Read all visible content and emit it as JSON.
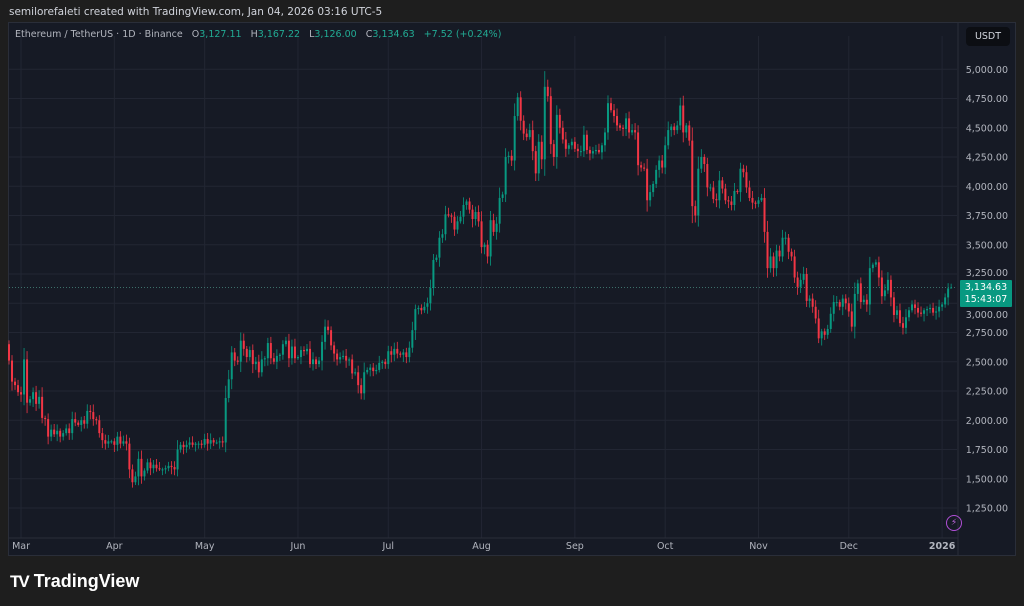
{
  "credit": "semilorefaleti created with TradingView.com, Jan 04, 2026 03:16 UTC-5",
  "legend": {
    "symbol": "Ethereum / TetherUS · 1D · Binance",
    "o_label": "O",
    "o": "3,127.11",
    "h_label": "H",
    "h": "3,167.22",
    "l_label": "L",
    "l": "3,126.00",
    "c_label": "C",
    "c": "3,134.63",
    "change": "+7.52 (+0.24%)"
  },
  "currency_button": "USDT",
  "price_label": {
    "price": "3,134.63",
    "countdown": "15:43:07"
  },
  "brand": {
    "name": "TradingView",
    "mark": "TV"
  },
  "icons": {
    "alert": "lightning-icon"
  },
  "colors": {
    "up": "#089981",
    "down": "#f23645",
    "background": "#161a25",
    "grid": "#222633"
  },
  "chart_data": {
    "type": "candlestick",
    "interval": "1D",
    "y_ticks": [
      "1,250.00",
      "1,500.00",
      "1,750.00",
      "2,000.00",
      "2,250.00",
      "2,500.00",
      "2,750.00",
      "3,000.00",
      "3,250.00",
      "3,500.00",
      "3,750.00",
      "4,000.00",
      "4,250.00",
      "4,500.00",
      "4,750.00",
      "5,000.00"
    ],
    "y_tick_values": [
      1250,
      1500,
      1750,
      2000,
      2250,
      2500,
      2750,
      3000,
      3250,
      3500,
      3750,
      4000,
      4250,
      4500,
      4750,
      5000
    ],
    "x_ticks": [
      "Mar",
      "Apr",
      "May",
      "Jun",
      "Jul",
      "Aug",
      "Sep",
      "Oct",
      "Nov",
      "Dec",
      "2026"
    ],
    "grid": true,
    "last_candle": {
      "open": 3127.11,
      "high": 3167.22,
      "low": 3126.0,
      "close": 3134.63
    },
    "first_open": 2650,
    "closes_by_month": {
      "2025-02": [
        2510,
        2330,
        2300,
        2240
      ],
      "2025-03": [
        2220,
        2520,
        2150,
        2180,
        2240,
        2140,
        2200,
        2020,
        2010,
        1860,
        1920,
        1880,
        1910,
        1860,
        1890,
        1930,
        1890,
        2010,
        1980,
        1960,
        2000,
        1970,
        2080,
        2070,
        2010,
        2000,
        1890,
        1830,
        1800,
        1820,
        1820
      ],
      "2025-04": [
        1790,
        1860,
        1800,
        1820,
        1800,
        1580,
        1470,
        1520,
        1670,
        1520,
        1570,
        1640,
        1590,
        1620,
        1590,
        1580,
        1580,
        1590,
        1610,
        1600,
        1580,
        1750,
        1790,
        1770,
        1790,
        1810,
        1790,
        1800,
        1800,
        1790
      ],
      "2025-05": [
        1840,
        1800,
        1830,
        1810,
        1810,
        1820,
        1810,
        2190,
        2350,
        2580,
        2510,
        2500,
        2680,
        2610,
        2540,
        2600,
        2480,
        2500,
        2410,
        2520,
        2530,
        2660,
        2530,
        2500,
        2550,
        2560,
        2650,
        2680,
        2530,
        2630,
        2530
      ],
      "2025-06": [
        2540,
        2600,
        2590,
        2610,
        2480,
        2520,
        2480,
        2510,
        2670,
        2800,
        2770,
        2640,
        2570,
        2520,
        2540,
        2550,
        2510,
        2520,
        2400,
        2410,
        2300,
        2230,
        2410,
        2430,
        2450,
        2420,
        2430,
        2490,
        2500,
        2480
      ],
      "2025-07": [
        2590,
        2560,
        2610,
        2570,
        2560,
        2580,
        2540,
        2620,
        2770,
        2950,
        2960,
        2940,
        2970,
        3000,
        3130,
        3370,
        3390,
        3560,
        3590,
        3760,
        3750,
        3740,
        3630,
        3700,
        3740,
        3840,
        3870,
        3800,
        3720,
        3780,
        3700
      ],
      "2025-08": [
        3480,
        3500,
        3400,
        3710,
        3610,
        3680,
        3900,
        3930,
        4250,
        4260,
        4220,
        4600,
        4760,
        4560,
        4450,
        4420,
        4480,
        4300,
        4110,
        4380,
        4230,
        4850,
        4770,
        4360,
        4250,
        4610,
        4500,
        4400,
        4320,
        4350,
        4380
      ],
      "2025-09": [
        4320,
        4300,
        4300,
        4440,
        4310,
        4280,
        4300,
        4310,
        4290,
        4350,
        4460,
        4710,
        4650,
        4600,
        4520,
        4500,
        4490,
        4580,
        4460,
        4480,
        4460,
        4180,
        4160,
        4150,
        3880,
        3950,
        4020,
        4140,
        4220,
        4160
      ],
      "2025-10": [
        4350,
        4480,
        4510,
        4480,
        4520,
        4690,
        4460,
        4520,
        4390,
        3830,
        3750,
        4150,
        4250,
        4190,
        3990,
        3990,
        3890,
        3880,
        4050,
        3980,
        3880,
        3870,
        3840,
        3960,
        3950,
        4150,
        4120,
        3990,
        3900,
        3860,
        3850
      ],
      "2025-11": [
        3880,
        3900,
        3610,
        3300,
        3400,
        3300,
        3450,
        3400,
        3560,
        3560,
        3440,
        3400,
        3220,
        3140,
        3200,
        3250,
        3020,
        3040,
        2970,
        2870,
        2700,
        2760,
        2730,
        2780,
        2910,
        3010,
        3010,
        2970,
        3040,
        3000
      ],
      "2025-12": [
        2930,
        2800,
        3080,
        3170,
        3010,
        3030,
        2990,
        3300,
        3330,
        3350,
        3220,
        3060,
        3110,
        3200,
        3050,
        2900,
        2940,
        2830,
        2790,
        2880,
        2940,
        2990,
        2960,
        2920,
        2910,
        2940,
        2950,
        2960,
        2920,
        2930,
        2970
      ],
      "2026-01": [
        2990,
        3050,
        3127.11,
        3134.63
      ]
    }
  }
}
